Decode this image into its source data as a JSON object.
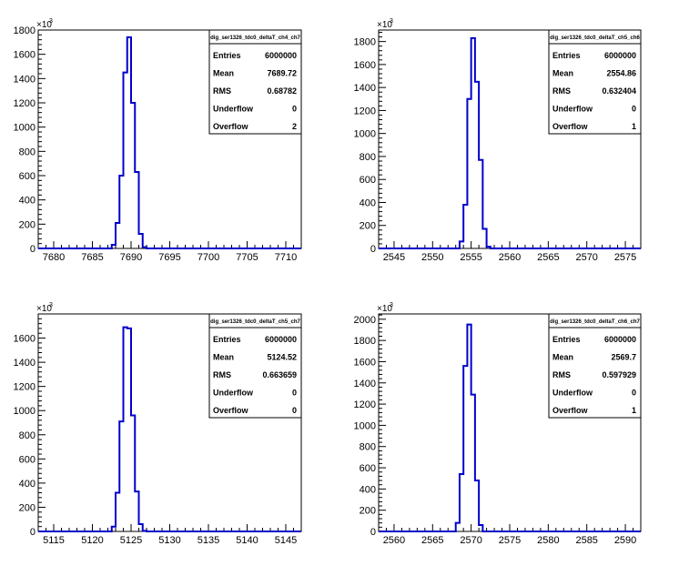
{
  "chart_data": [
    {
      "type": "histogram",
      "y_multiplier_label": "×10",
      "y_multiplier_exp": "3",
      "xlim": [
        7678,
        7712
      ],
      "ylim": [
        0,
        1800
      ],
      "x_ticks": [
        7680,
        7685,
        7690,
        7695,
        7700,
        7705,
        7710
      ],
      "y_ticks": [
        0,
        200,
        400,
        600,
        800,
        1000,
        1200,
        1400,
        1600,
        1800
      ],
      "bin_width": 0.5,
      "bins": [
        {
          "x": 7687.5,
          "y": 30
        },
        {
          "x": 7688.0,
          "y": 210
        },
        {
          "x": 7688.5,
          "y": 600
        },
        {
          "x": 7689.0,
          "y": 1450
        },
        {
          "x": 7689.5,
          "y": 1740
        },
        {
          "x": 7690.0,
          "y": 1200
        },
        {
          "x": 7690.5,
          "y": 630
        },
        {
          "x": 7691.0,
          "y": 120
        },
        {
          "x": 7691.5,
          "y": 10
        }
      ],
      "stats": {
        "title": "dig_ser1326_tdc0_deltaT_ch4_ch7",
        "rows": [
          {
            "label": "Entries",
            "value": "6000000"
          },
          {
            "label": "Mean",
            "value": "7689.72"
          },
          {
            "label": "RMS",
            "value": "0.68782"
          },
          {
            "label": "Underflow",
            "value": "0"
          },
          {
            "label": "Overflow",
            "value": "2"
          }
        ]
      }
    },
    {
      "type": "histogram",
      "y_multiplier_label": "×10",
      "y_multiplier_exp": "3",
      "xlim": [
        2543,
        2577
      ],
      "ylim": [
        0,
        1900
      ],
      "x_ticks": [
        2545,
        2550,
        2555,
        2560,
        2565,
        2570,
        2575
      ],
      "y_ticks": [
        0,
        200,
        400,
        600,
        800,
        1000,
        1200,
        1400,
        1600,
        1800
      ],
      "bin_width": 0.5,
      "bins": [
        {
          "x": 2553.5,
          "y": 60
        },
        {
          "x": 2554.0,
          "y": 380
        },
        {
          "x": 2554.5,
          "y": 1300
        },
        {
          "x": 2555.0,
          "y": 1830
        },
        {
          "x": 2555.5,
          "y": 1450
        },
        {
          "x": 2556.0,
          "y": 770
        },
        {
          "x": 2556.5,
          "y": 170
        },
        {
          "x": 2557.0,
          "y": 15
        }
      ],
      "stats": {
        "title": "dig_ser1326_tdc0_deltaT_ch5_ch6",
        "rows": [
          {
            "label": "Entries",
            "value": "6000000"
          },
          {
            "label": "Mean",
            "value": "2554.86"
          },
          {
            "label": "RMS",
            "value": "0.632404"
          },
          {
            "label": "Underflow",
            "value": "0"
          },
          {
            "label": "Overflow",
            "value": "1"
          }
        ]
      }
    },
    {
      "type": "histogram",
      "y_multiplier_label": "×10",
      "y_multiplier_exp": "3",
      "xlim": [
        5113,
        5147
      ],
      "ylim": [
        0,
        1800
      ],
      "x_ticks": [
        5115,
        5120,
        5125,
        5130,
        5135,
        5140,
        5145
      ],
      "y_ticks": [
        0,
        200,
        400,
        600,
        800,
        1000,
        1200,
        1400,
        1600
      ],
      "bin_width": 0.5,
      "bins": [
        {
          "x": 5122.5,
          "y": 40
        },
        {
          "x": 5123.0,
          "y": 320
        },
        {
          "x": 5123.5,
          "y": 910
        },
        {
          "x": 5124.0,
          "y": 1690
        },
        {
          "x": 5124.5,
          "y": 1680
        },
        {
          "x": 5125.0,
          "y": 960
        },
        {
          "x": 5125.5,
          "y": 330
        },
        {
          "x": 5126.0,
          "y": 60
        },
        {
          "x": 5126.5,
          "y": 5
        }
      ],
      "stats": {
        "title": "dig_ser1326_tdc0_deltaT_ch5_ch7",
        "rows": [
          {
            "label": "Entries",
            "value": "6000000"
          },
          {
            "label": "Mean",
            "value": "5124.52"
          },
          {
            "label": "RMS",
            "value": "0.663659"
          },
          {
            "label": "Underflow",
            "value": "0"
          },
          {
            "label": "Overflow",
            "value": "0"
          }
        ]
      }
    },
    {
      "type": "histogram",
      "y_multiplier_label": "×10",
      "y_multiplier_exp": "3",
      "xlim": [
        2558,
        2592
      ],
      "ylim": [
        0,
        2050
      ],
      "x_ticks": [
        2560,
        2565,
        2570,
        2575,
        2580,
        2585,
        2590
      ],
      "y_ticks": [
        0,
        200,
        400,
        600,
        800,
        1000,
        1200,
        1400,
        1600,
        1800,
        2000
      ],
      "bin_width": 0.5,
      "bins": [
        {
          "x": 2568.0,
          "y": 80
        },
        {
          "x": 2568.5,
          "y": 540
        },
        {
          "x": 2569.0,
          "y": 1560
        },
        {
          "x": 2569.5,
          "y": 1950
        },
        {
          "x": 2570.0,
          "y": 1290
        },
        {
          "x": 2570.5,
          "y": 480
        },
        {
          "x": 2571.0,
          "y": 60
        }
      ],
      "stats": {
        "title": "dig_ser1326_tdc0_deltaT_ch6_ch7",
        "rows": [
          {
            "label": "Entries",
            "value": "6000000"
          },
          {
            "label": "Mean",
            "value": "2569.7"
          },
          {
            "label": "RMS",
            "value": "0.597929"
          },
          {
            "label": "Underflow",
            "value": "0"
          },
          {
            "label": "Overflow",
            "value": "1"
          }
        ]
      }
    }
  ]
}
